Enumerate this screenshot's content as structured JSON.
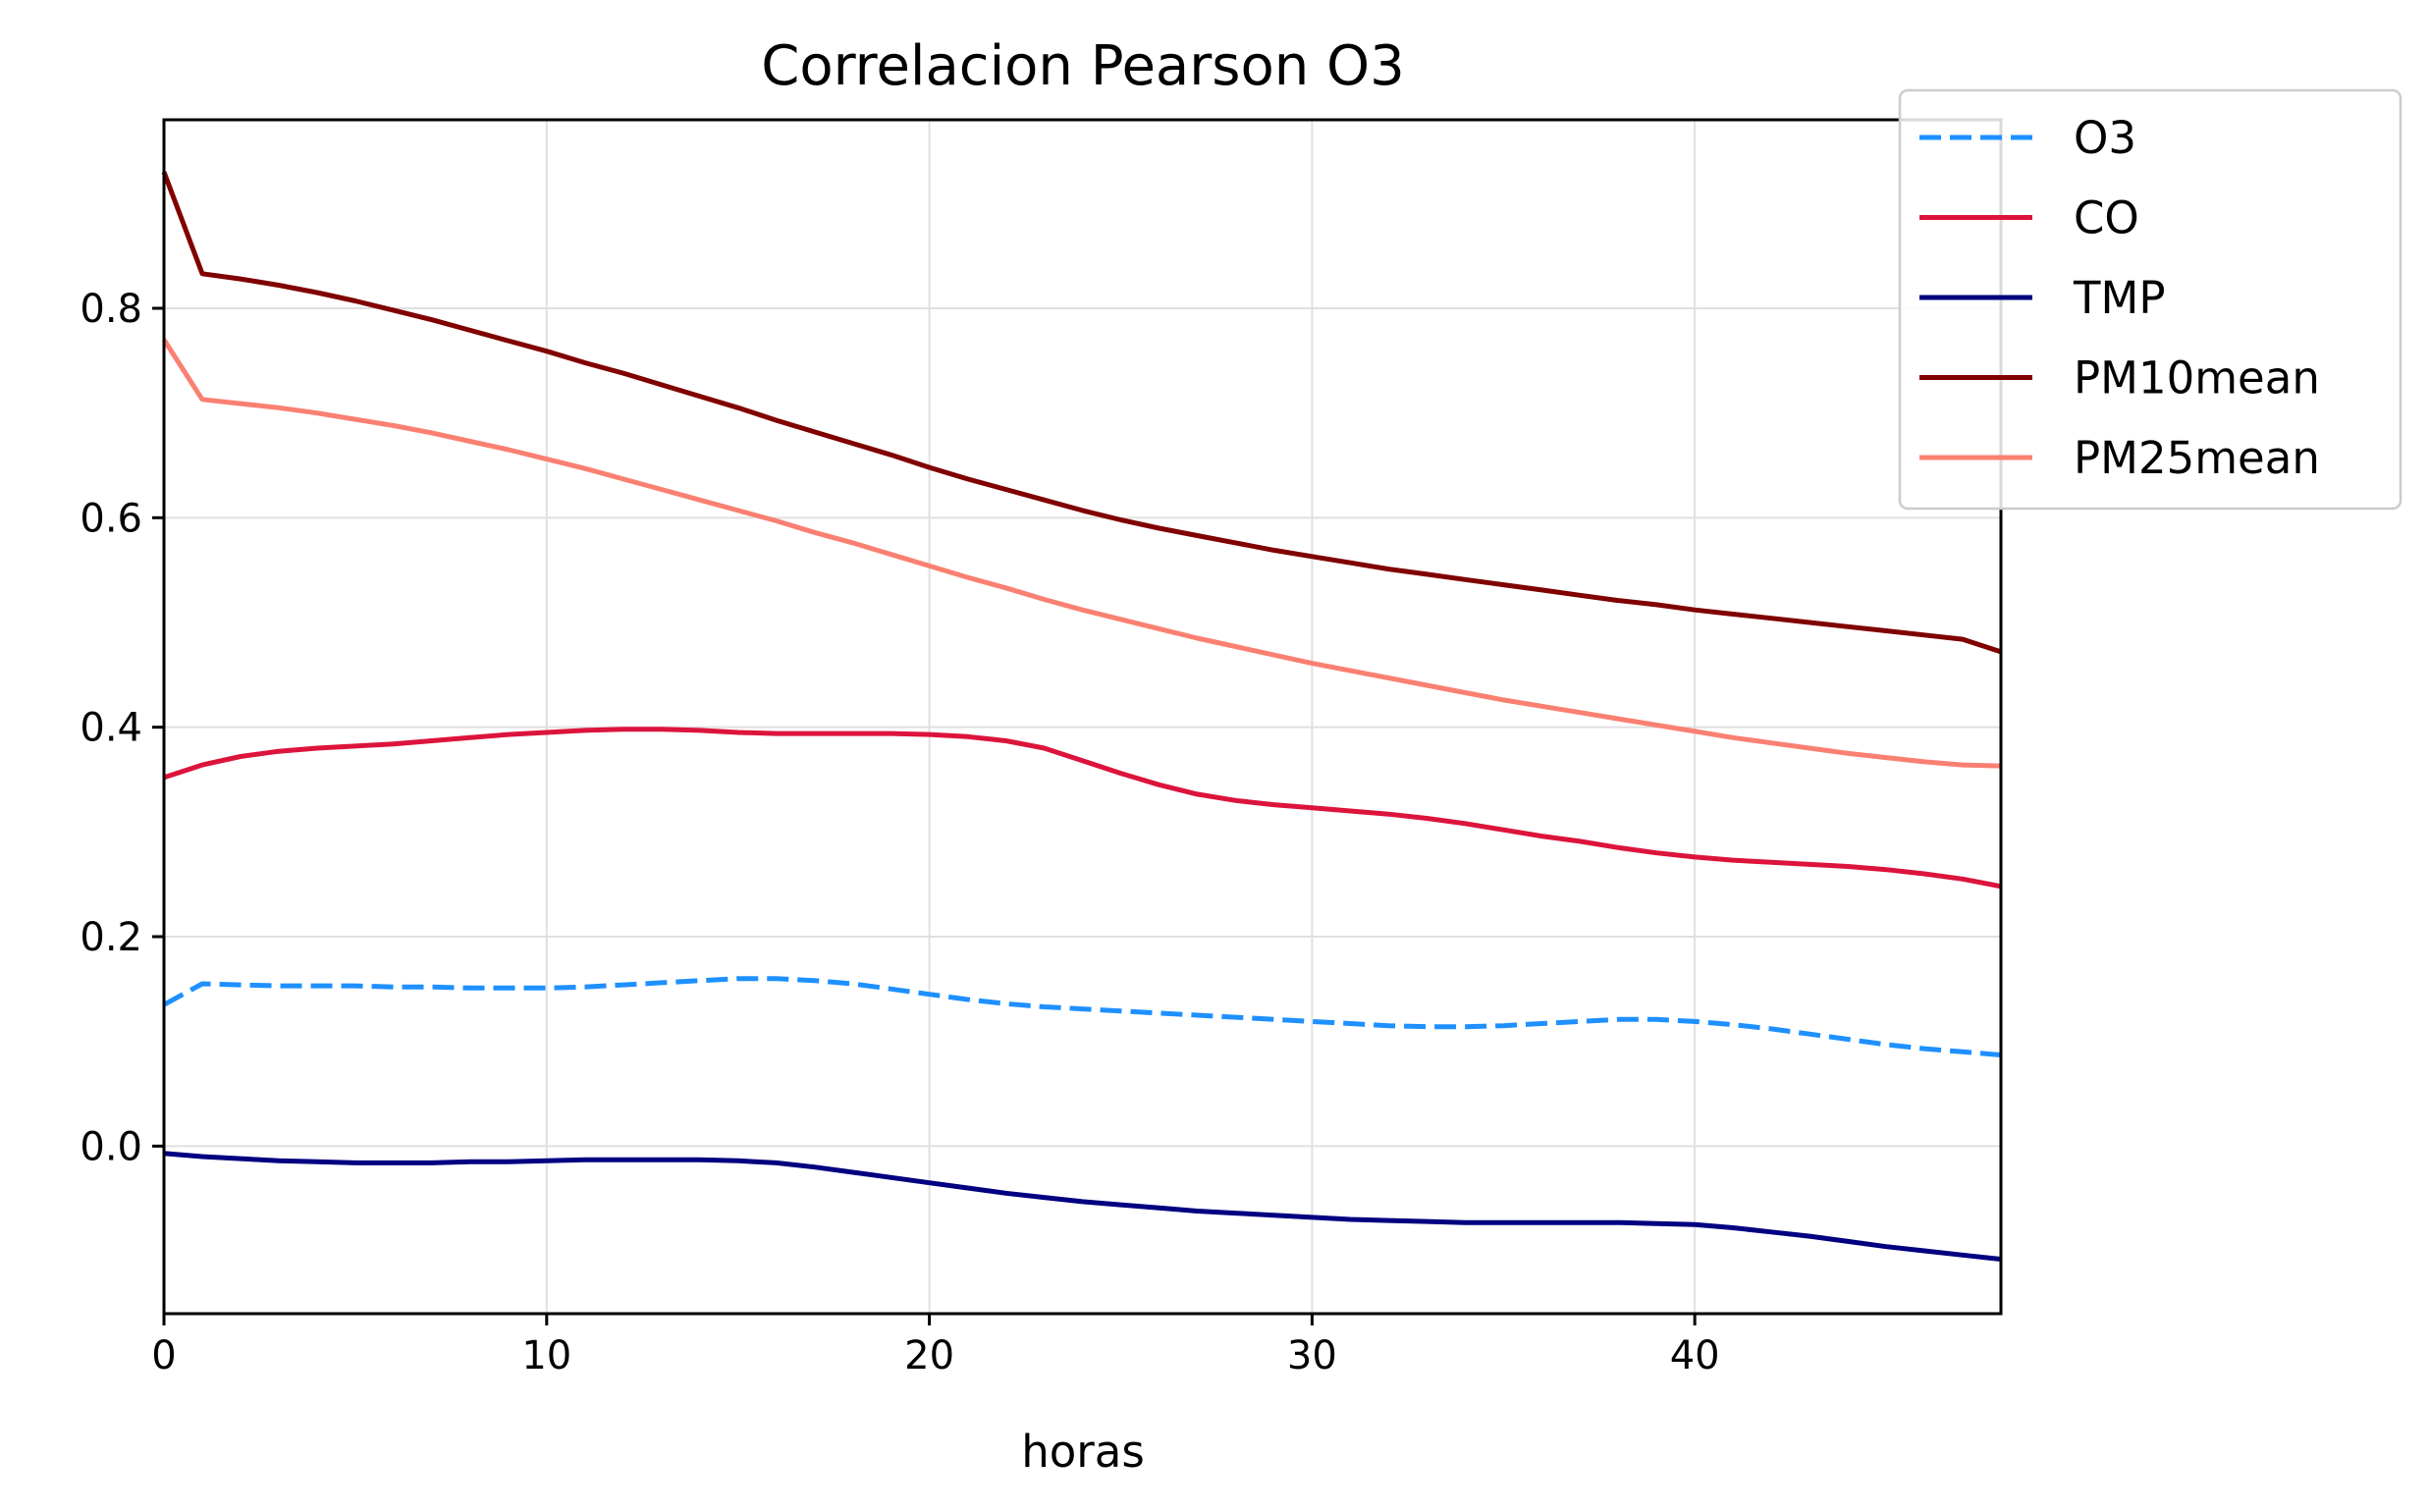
{
  "chart_data": {
    "type": "line",
    "title": "Correlacion Pearson O3",
    "xlabel": "horas",
    "ylabel": "",
    "xlim": [
      0,
      48
    ],
    "ylim": [
      -0.16,
      0.98
    ],
    "xticks": [
      0,
      10,
      20,
      30,
      40
    ],
    "yticks": [
      0.0,
      0.2,
      0.4,
      0.6,
      0.8
    ],
    "xtick_labels": [
      "0",
      "10",
      "20",
      "30",
      "40"
    ],
    "ytick_labels": [
      "0.0",
      "0.2",
      "0.4",
      "0.6",
      "0.8"
    ],
    "grid": true,
    "legend_position": "top-right",
    "x": [
      0,
      1,
      2,
      3,
      4,
      5,
      6,
      7,
      8,
      9,
      10,
      11,
      12,
      13,
      14,
      15,
      16,
      17,
      18,
      19,
      20,
      21,
      22,
      23,
      24,
      25,
      26,
      27,
      28,
      29,
      30,
      31,
      32,
      33,
      34,
      35,
      36,
      37,
      38,
      39,
      40,
      41,
      42,
      43,
      44,
      45,
      46,
      47,
      48
    ],
    "series": [
      {
        "name": "O3",
        "color": "#1e90ff",
        "dashed": true,
        "values": [
          0.135,
          0.155,
          0.154,
          0.153,
          0.153,
          0.153,
          0.152,
          0.152,
          0.151,
          0.151,
          0.151,
          0.152,
          0.154,
          0.156,
          0.158,
          0.16,
          0.16,
          0.158,
          0.155,
          0.15,
          0.145,
          0.14,
          0.136,
          0.133,
          0.131,
          0.129,
          0.127,
          0.125,
          0.123,
          0.121,
          0.119,
          0.117,
          0.115,
          0.114,
          0.114,
          0.115,
          0.117,
          0.119,
          0.121,
          0.121,
          0.119,
          0.116,
          0.112,
          0.107,
          0.102,
          0.097,
          0.093,
          0.09,
          0.087
        ]
      },
      {
        "name": "CO",
        "color": "#dc143c",
        "dashed": false,
        "values": [
          0.352,
          0.364,
          0.372,
          0.377,
          0.38,
          0.382,
          0.384,
          0.387,
          0.39,
          0.393,
          0.395,
          0.397,
          0.398,
          0.398,
          0.397,
          0.395,
          0.394,
          0.394,
          0.394,
          0.394,
          0.393,
          0.391,
          0.387,
          0.38,
          0.368,
          0.356,
          0.345,
          0.336,
          0.33,
          0.326,
          0.323,
          0.32,
          0.317,
          0.313,
          0.308,
          0.302,
          0.296,
          0.291,
          0.285,
          0.28,
          0.276,
          0.273,
          0.271,
          0.269,
          0.267,
          0.264,
          0.26,
          0.255,
          0.248
        ]
      },
      {
        "name": "TMP",
        "color": "#000080",
        "dashed": false,
        "values": [
          -0.007,
          -0.01,
          -0.012,
          -0.014,
          -0.015,
          -0.016,
          -0.016,
          -0.016,
          -0.015,
          -0.015,
          -0.014,
          -0.013,
          -0.013,
          -0.013,
          -0.013,
          -0.014,
          -0.016,
          -0.02,
          -0.025,
          -0.03,
          -0.035,
          -0.04,
          -0.045,
          -0.049,
          -0.053,
          -0.056,
          -0.059,
          -0.062,
          -0.064,
          -0.066,
          -0.068,
          -0.07,
          -0.071,
          -0.072,
          -0.073,
          -0.073,
          -0.073,
          -0.073,
          -0.073,
          -0.074,
          -0.075,
          -0.078,
          -0.082,
          -0.086,
          -0.091,
          -0.096,
          -0.1,
          -0.104,
          -0.108
        ]
      },
      {
        "name": "PM10mean",
        "color": "#800000",
        "dashed": false,
        "values": [
          0.93,
          0.833,
          0.828,
          0.822,
          0.815,
          0.807,
          0.798,
          0.789,
          0.779,
          0.769,
          0.759,
          0.748,
          0.738,
          0.727,
          0.716,
          0.705,
          0.693,
          0.682,
          0.671,
          0.66,
          0.648,
          0.637,
          0.627,
          0.617,
          0.607,
          0.598,
          0.59,
          0.583,
          0.576,
          0.569,
          0.563,
          0.557,
          0.551,
          0.546,
          0.541,
          0.536,
          0.531,
          0.526,
          0.521,
          0.517,
          0.512,
          0.508,
          0.504,
          0.5,
          0.496,
          0.492,
          0.488,
          0.484,
          0.472
        ]
      },
      {
        "name": "PM25mean",
        "color": "#fa8072",
        "dashed": false,
        "values": [
          0.77,
          0.713,
          0.709,
          0.705,
          0.7,
          0.694,
          0.688,
          0.681,
          0.673,
          0.665,
          0.656,
          0.647,
          0.637,
          0.627,
          0.617,
          0.607,
          0.597,
          0.586,
          0.576,
          0.565,
          0.554,
          0.543,
          0.533,
          0.522,
          0.512,
          0.503,
          0.494,
          0.485,
          0.477,
          0.469,
          0.461,
          0.454,
          0.447,
          0.44,
          0.433,
          0.426,
          0.42,
          0.414,
          0.408,
          0.402,
          0.396,
          0.39,
          0.385,
          0.38,
          0.375,
          0.371,
          0.367,
          0.364,
          0.363
        ]
      }
    ]
  }
}
